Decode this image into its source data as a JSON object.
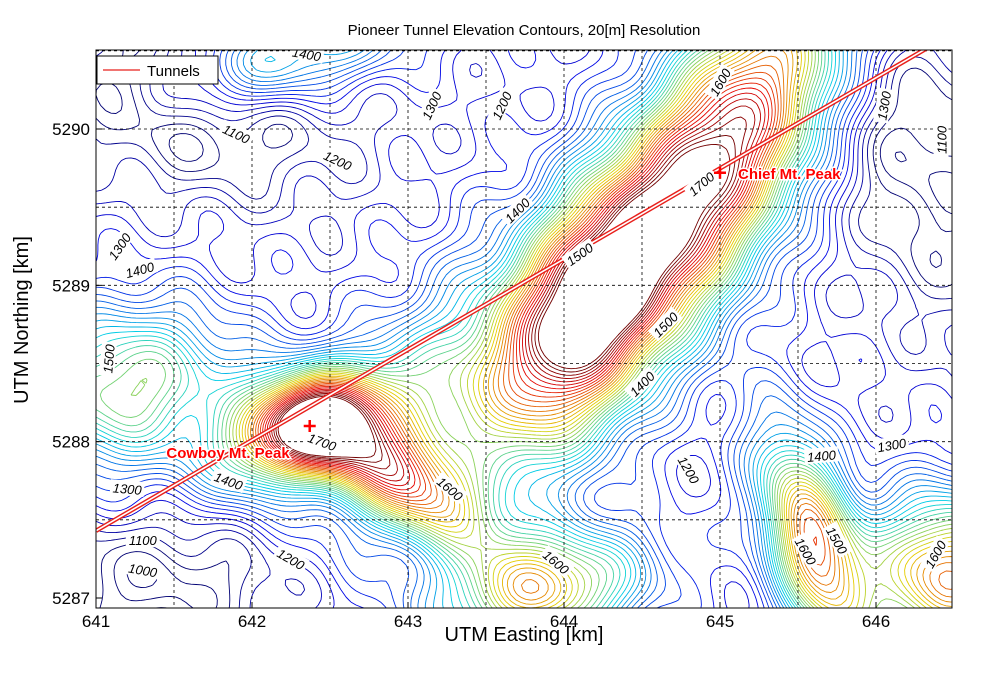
{
  "chart_data": {
    "type": "contour",
    "title": "Pioneer Tunnel Elevation Contours, 20[m] Resolution",
    "xlabel": "UTM Easting [km]",
    "ylabel": "UTM Northing [km]",
    "xlim": [
      641,
      646.5
    ],
    "ylim": [
      5287,
      5289.5
    ],
    "xticks": [
      641,
      642,
      643,
      644,
      645,
      646
    ],
    "yticks": [
      5287,
      5288,
      5289,
      5290
    ],
    "grid": true,
    "grid_spacing_km": 0.5,
    "legend": {
      "position": "top-left",
      "entries": [
        {
          "label": "Tunnels",
          "color": "#e8201c"
        }
      ]
    },
    "contour_interval_m": 20,
    "colormap": "jet",
    "color_low": "#1a1ab4",
    "color_high": "#c81e14",
    "tunnels": [
      {
        "name": "Tunnels",
        "x": [
          641,
          646.35
        ],
        "y": [
          5287.43,
          5290.53
        ]
      }
    ],
    "peaks": [
      {
        "label": "Cowboy Mt. Peak",
        "x": 642.37,
        "y": 5288.1,
        "color": "#ff0000"
      },
      {
        "label": "Chief Mt. Peak",
        "x": 645.0,
        "y": 5289.72,
        "color": "#ff0000"
      }
    ],
    "contour_labels": [
      {
        "text": "1400",
        "x": 642.35,
        "y": 5290.48,
        "angle": 10
      },
      {
        "text": "1300",
        "x": 643.15,
        "y": 5290.15,
        "angle": -65
      },
      {
        "text": "1200",
        "x": 643.6,
        "y": 5290.15,
        "angle": -65
      },
      {
        "text": "1100",
        "x": 641.9,
        "y": 5289.97,
        "angle": 25
      },
      {
        "text": "1200",
        "x": 642.55,
        "y": 5289.8,
        "angle": 25
      },
      {
        "text": "1600",
        "x": 645.0,
        "y": 5290.3,
        "angle": -60
      },
      {
        "text": "1300",
        "x": 646.05,
        "y": 5290.15,
        "angle": -80
      },
      {
        "text": "1100",
        "x": 646.42,
        "y": 5289.93,
        "angle": -90
      },
      {
        "text": "1400",
        "x": 643.7,
        "y": 5289.48,
        "angle": -45
      },
      {
        "text": "1700",
        "x": 644.88,
        "y": 5289.65,
        "angle": -40
      },
      {
        "text": "1500",
        "x": 644.1,
        "y": 5289.2,
        "angle": -35
      },
      {
        "text": "1300",
        "x": 641.15,
        "y": 5289.25,
        "angle": -55
      },
      {
        "text": "1400",
        "x": 641.28,
        "y": 5289.1,
        "angle": -15
      },
      {
        "text": "1500",
        "x": 644.65,
        "y": 5288.75,
        "angle": -45
      },
      {
        "text": "1500",
        "x": 641.08,
        "y": 5288.53,
        "angle": -85
      },
      {
        "text": "1400",
        "x": 644.5,
        "y": 5288.37,
        "angle": -45
      },
      {
        "text": "1700",
        "x": 642.45,
        "y": 5288.0,
        "angle": 20
      },
      {
        "text": "1400",
        "x": 641.85,
        "y": 5287.75,
        "angle": 20
      },
      {
        "text": "1300",
        "x": 641.2,
        "y": 5287.7,
        "angle": 5
      },
      {
        "text": "1600",
        "x": 643.27,
        "y": 5287.7,
        "angle": 40
      },
      {
        "text": "1200",
        "x": 644.8,
        "y": 5287.82,
        "angle": 60
      },
      {
        "text": "1400",
        "x": 645.65,
        "y": 5287.91,
        "angle": -5
      },
      {
        "text": "1300",
        "x": 646.1,
        "y": 5287.98,
        "angle": -10
      },
      {
        "text": "1500",
        "x": 645.75,
        "y": 5287.37,
        "angle": 60
      },
      {
        "text": "1600",
        "x": 645.55,
        "y": 5287.3,
        "angle": 60
      },
      {
        "text": "1600",
        "x": 646.38,
        "y": 5287.28,
        "angle": -60
      },
      {
        "text": "1100",
        "x": 641.3,
        "y": 5287.37,
        "angle": 0
      },
      {
        "text": "1000",
        "x": 641.3,
        "y": 5287.18,
        "angle": 10
      },
      {
        "text": "1200",
        "x": 642.25,
        "y": 5287.25,
        "angle": 30
      },
      {
        "text": "1600",
        "x": 643.95,
        "y": 5287.23,
        "angle": 40
      }
    ]
  }
}
